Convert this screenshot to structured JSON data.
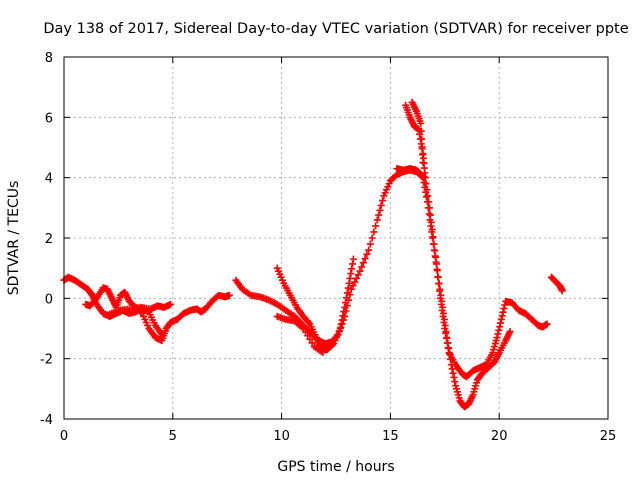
{
  "chart_data": {
    "type": "scatter",
    "title": "Day 138 of 2017, Sidereal Day-to-day VTEC variation (SDTVAR) for receiver ppte",
    "xlabel": "GPS time / hours",
    "ylabel": "SDTVAR / TECUs",
    "xlim": [
      0,
      25
    ],
    "ylim": [
      -4,
      8
    ],
    "x_ticks": [
      0,
      5,
      10,
      15,
      20,
      25
    ],
    "y_ticks": [
      -4,
      -2,
      0,
      2,
      4,
      6,
      8
    ],
    "grid": true,
    "marker": "+",
    "series_color": "#ff0000",
    "series": [
      {
        "name": "seg1",
        "points": [
          [
            0.0,
            0.6
          ],
          [
            0.2,
            0.7
          ],
          [
            0.5,
            0.6
          ],
          [
            0.8,
            0.45
          ],
          [
            1.1,
            0.3
          ],
          [
            1.3,
            0.1
          ],
          [
            1.5,
            -0.2
          ],
          [
            1.8,
            -0.5
          ],
          [
            2.1,
            -0.6
          ],
          [
            2.4,
            -0.5
          ],
          [
            2.7,
            -0.4
          ],
          [
            3.0,
            -0.5
          ],
          [
            3.3,
            -0.45
          ],
          [
            3.6,
            -0.3
          ],
          [
            3.9,
            -0.45
          ],
          [
            4.2,
            -0.9
          ],
          [
            4.5,
            -1.2
          ]
        ]
      },
      {
        "name": "seg2",
        "points": [
          [
            1.0,
            -0.2
          ],
          [
            1.2,
            -0.25
          ],
          [
            1.5,
            0.0
          ],
          [
            1.8,
            0.35
          ],
          [
            2.0,
            0.3
          ],
          [
            2.2,
            0.0
          ],
          [
            2.4,
            -0.3
          ],
          [
            2.6,
            0.1
          ],
          [
            2.8,
            0.2
          ],
          [
            3.0,
            -0.1
          ],
          [
            3.3,
            -0.3
          ],
          [
            3.6,
            -0.5
          ],
          [
            3.9,
            -1.0
          ],
          [
            4.2,
            -1.3
          ],
          [
            4.5,
            -1.4
          ],
          [
            4.7,
            -1.0
          ],
          [
            4.9,
            -0.8
          ],
          [
            5.2,
            -0.7
          ],
          [
            5.5,
            -0.5
          ],
          [
            5.8,
            -0.4
          ],
          [
            6.1,
            -0.35
          ],
          [
            6.3,
            -0.45
          ],
          [
            6.5,
            -0.35
          ],
          [
            6.8,
            -0.1
          ],
          [
            7.1,
            0.1
          ],
          [
            7.4,
            0.05
          ],
          [
            7.6,
            0.1
          ]
        ]
      },
      {
        "name": "seg3",
        "points": [
          [
            2.0,
            -0.55
          ],
          [
            2.5,
            -0.4
          ],
          [
            3.0,
            -0.35
          ],
          [
            3.5,
            -0.3
          ],
          [
            4.0,
            -0.35
          ],
          [
            4.3,
            -0.25
          ],
          [
            4.6,
            -0.3
          ],
          [
            4.9,
            -0.2
          ]
        ]
      },
      {
        "name": "seg4",
        "points": [
          [
            7.9,
            0.6
          ],
          [
            8.2,
            0.3
          ],
          [
            8.6,
            0.1
          ],
          [
            9.0,
            0.05
          ],
          [
            9.4,
            -0.05
          ],
          [
            9.8,
            -0.2
          ],
          [
            10.2,
            -0.4
          ],
          [
            10.6,
            -0.6
          ],
          [
            11.0,
            -0.9
          ],
          [
            11.4,
            -1.2
          ],
          [
            11.7,
            -1.4
          ],
          [
            12.0,
            -1.5
          ],
          [
            12.3,
            -1.45
          ],
          [
            12.6,
            -1.2
          ],
          [
            12.9,
            -0.6
          ],
          [
            13.2,
            0.3
          ],
          [
            13.6,
            0.9
          ],
          [
            14.0,
            1.6
          ],
          [
            14.4,
            2.6
          ],
          [
            14.7,
            3.4
          ],
          [
            15.0,
            3.9
          ],
          [
            15.3,
            4.1
          ],
          [
            15.6,
            4.2
          ],
          [
            15.9,
            4.25
          ],
          [
            16.2,
            4.2
          ],
          [
            16.5,
            4.0
          ],
          [
            16.7,
            3.2
          ],
          [
            16.9,
            2.2
          ],
          [
            17.1,
            1.2
          ],
          [
            17.3,
            0.0
          ],
          [
            17.5,
            -1.0
          ],
          [
            17.7,
            -1.8
          ],
          [
            18.0,
            -2.2
          ],
          [
            18.3,
            -2.5
          ],
          [
            18.5,
            -2.6
          ],
          [
            18.8,
            -2.4
          ],
          [
            19.1,
            -2.3
          ],
          [
            19.4,
            -2.2
          ],
          [
            19.7,
            -1.8
          ],
          [
            19.9,
            -1.3
          ],
          [
            20.1,
            -0.7
          ],
          [
            20.3,
            -0.1
          ],
          [
            20.6,
            -0.15
          ],
          [
            20.9,
            -0.4
          ],
          [
            21.2,
            -0.5
          ],
          [
            21.5,
            -0.7
          ],
          [
            21.8,
            -0.9
          ],
          [
            22.0,
            -0.95
          ],
          [
            22.2,
            -0.85
          ]
        ]
      },
      {
        "name": "seg5",
        "points": [
          [
            9.8,
            1.0
          ],
          [
            10.1,
            0.5
          ],
          [
            10.4,
            0.1
          ],
          [
            10.7,
            -0.3
          ],
          [
            11.0,
            -0.6
          ],
          [
            11.3,
            -0.85
          ],
          [
            11.6,
            -1.3
          ],
          [
            11.8,
            -1.6
          ],
          [
            12.1,
            -1.7
          ],
          [
            12.4,
            -1.5
          ],
          [
            12.7,
            -1.0
          ],
          [
            12.9,
            -0.3
          ],
          [
            13.1,
            0.5
          ],
          [
            13.3,
            1.3
          ]
        ]
      },
      {
        "name": "seg6",
        "points": [
          [
            9.8,
            -0.6
          ],
          [
            10.2,
            -0.7
          ],
          [
            10.6,
            -0.75
          ],
          [
            11.0,
            -1.0
          ],
          [
            11.5,
            -1.6
          ],
          [
            11.9,
            -1.8
          ]
        ]
      },
      {
        "name": "seg7",
        "points": [
          [
            15.3,
            4.3
          ],
          [
            15.6,
            4.25
          ],
          [
            15.9,
            4.3
          ],
          [
            16.2,
            4.25
          ],
          [
            16.4,
            4.1
          ],
          [
            16.6,
            4.0
          ]
        ]
      },
      {
        "name": "seg8",
        "points": [
          [
            15.7,
            6.4
          ],
          [
            15.9,
            6.0
          ],
          [
            16.1,
            5.7
          ],
          [
            16.3,
            5.6
          ],
          [
            16.5,
            4.8
          ],
          [
            16.6,
            4.0
          ],
          [
            16.8,
            3.0
          ],
          [
            17.0,
            1.8
          ],
          [
            17.2,
            0.7
          ],
          [
            17.4,
            -0.3
          ],
          [
            17.6,
            -1.3
          ],
          [
            17.8,
            -2.2
          ],
          [
            18.0,
            -2.9
          ],
          [
            18.2,
            -3.4
          ],
          [
            18.4,
            -3.6
          ],
          [
            18.6,
            -3.5
          ],
          [
            18.8,
            -3.2
          ],
          [
            19.0,
            -2.7
          ],
          [
            19.2,
            -2.5
          ],
          [
            19.5,
            -2.3
          ],
          [
            19.8,
            -2.1
          ],
          [
            20.0,
            -1.8
          ],
          [
            20.3,
            -1.4
          ],
          [
            20.5,
            -1.1
          ]
        ]
      },
      {
        "name": "seg9",
        "points": [
          [
            16.0,
            6.5
          ],
          [
            16.2,
            6.2
          ],
          [
            16.4,
            5.8
          ],
          [
            16.5,
            4.5
          ]
        ]
      },
      {
        "name": "seg10",
        "points": [
          [
            22.4,
            0.7
          ],
          [
            22.6,
            0.55
          ],
          [
            22.8,
            0.4
          ],
          [
            22.9,
            0.25
          ]
        ]
      }
    ]
  }
}
